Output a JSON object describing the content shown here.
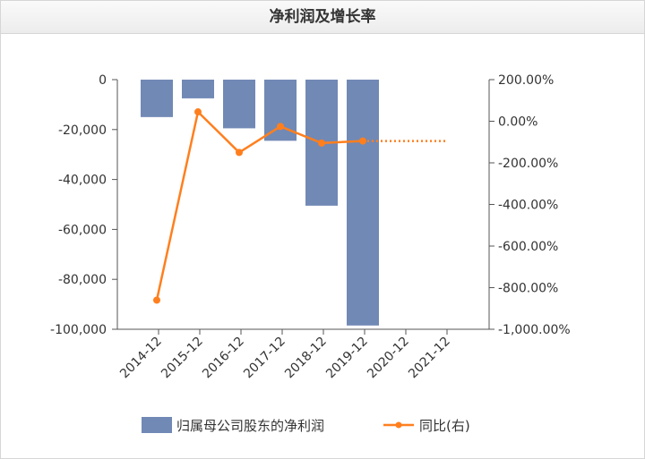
{
  "panel": {
    "title": "净利润及增长率"
  },
  "chart_data": {
    "type": "bar+line",
    "title": "净利润及增长率",
    "categories": [
      "2014-12",
      "2015-12",
      "2016-12",
      "2017-12",
      "2018-12",
      "2019-12",
      "2020-12",
      "2021-12"
    ],
    "series": [
      {
        "name": "归属母公司股东的净利润",
        "type": "bar",
        "axis": "left",
        "color": "#7189b5",
        "values": [
          -15000,
          -7500,
          -19500,
          -24500,
          -50500,
          -98500,
          null,
          null
        ]
      },
      {
        "name": "同比(右)",
        "type": "line",
        "axis": "right",
        "color": "#ff7f1e",
        "values": [
          -860,
          45,
          -150,
          -25,
          -105,
          -95,
          null,
          null
        ],
        "projection": {
          "from": "2019-12",
          "to": "2021-12",
          "value": -95,
          "style": "dotted"
        }
      }
    ],
    "left_axis": {
      "ylim": [
        -100000,
        0
      ],
      "ticks": [
        0,
        -20000,
        -40000,
        -60000,
        -80000,
        -100000
      ],
      "tick_labels": [
        "0",
        "-20,000",
        "-40,000",
        "-60,000",
        "-80,000",
        "-100,000"
      ]
    },
    "right_axis": {
      "ylim": [
        -1000,
        200
      ],
      "ticks": [
        200,
        0,
        -200,
        -400,
        -600,
        -800,
        -1000
      ],
      "tick_labels": [
        "200.00%",
        "0.00%",
        "-200.00%",
        "-400.00%",
        "-600.00%",
        "-800.00%",
        "-1,000.00%"
      ]
    },
    "legend_position": "bottom",
    "grid": false
  }
}
